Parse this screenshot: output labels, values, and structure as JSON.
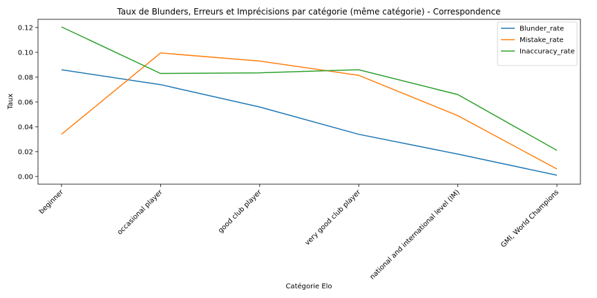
{
  "chart_data": {
    "type": "line",
    "title": "Taux de Blunders, Erreurs et Imprécisions par catégorie (même catégorie) - Correspondence",
    "xlabel": "Catégorie Elo",
    "ylabel": "Taux",
    "categories": [
      "beginner",
      "occasional player",
      "good club player",
      "very good club player",
      "national and international level (IM)",
      "GMI, World Champions"
    ],
    "series": [
      {
        "name": "Blunder_rate",
        "color": "#1f77b4",
        "values": [
          0.086,
          0.074,
          0.056,
          0.034,
          0.018,
          0.001
        ]
      },
      {
        "name": "Mistake_rate",
        "color": "#ff7f0e",
        "values": [
          0.034,
          0.0995,
          0.093,
          0.0815,
          0.049,
          0.006
        ]
      },
      {
        "name": "Inaccuracy_rate",
        "color": "#2ca02c",
        "values": [
          0.1205,
          0.083,
          0.0835,
          0.086,
          0.066,
          0.021
        ]
      }
    ],
    "ylim": [
      -0.0062,
      0.1266
    ],
    "yticks": [
      0.0,
      0.02,
      0.04,
      0.06,
      0.08,
      0.1,
      0.12
    ],
    "ytick_labels": [
      "0.00",
      "0.02",
      "0.04",
      "0.06",
      "0.08",
      "0.10",
      "0.12"
    ],
    "grid": false,
    "legend_position": "top-right"
  }
}
